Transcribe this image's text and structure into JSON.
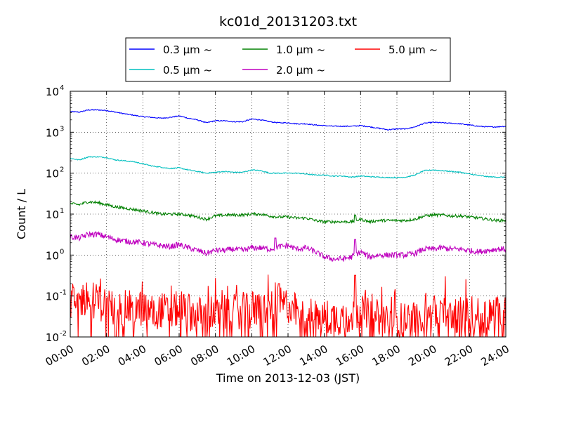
{
  "chart_data": {
    "type": "line",
    "title": "kc01d_20131203.txt",
    "xlabel": "Time on 2013-12-03 (JST)",
    "ylabel": "Count / L",
    "yscale": "log",
    "ylim": [
      0.01,
      10000
    ],
    "xlim": [
      "00:00",
      "24:00"
    ],
    "x_tick_labels": [
      "00:00",
      "02:00",
      "04:00",
      "06:00",
      "08:00",
      "10:00",
      "12:00",
      "14:00",
      "16:00",
      "18:00",
      "20:00",
      "22:00",
      "24:00"
    ],
    "y_tick_labels": [
      {
        "base": "10",
        "exp": "-2",
        "value": 0.01
      },
      {
        "base": "10",
        "exp": "-1",
        "value": 0.1
      },
      {
        "base": "10",
        "exp": "0",
        "value": 1
      },
      {
        "base": "10",
        "exp": "1",
        "value": 10
      },
      {
        "base": "10",
        "exp": "2",
        "value": 100
      },
      {
        "base": "10",
        "exp": "3",
        "value": 1000
      },
      {
        "base": "10",
        "exp": "4",
        "value": 10000
      }
    ],
    "grid": true,
    "legend_position": "top",
    "x_hours": [
      0,
      0.5,
      1,
      1.5,
      2,
      2.5,
      3,
      3.5,
      4,
      4.5,
      5,
      5.5,
      6,
      6.5,
      7,
      7.5,
      8,
      8.5,
      9,
      9.5,
      10,
      10.5,
      11,
      11.5,
      12,
      12.5,
      13,
      13.5,
      14,
      14.5,
      15,
      15.5,
      16,
      16.5,
      17,
      17.5,
      18,
      18.5,
      19,
      19.5,
      20,
      20.5,
      21,
      21.5,
      22,
      22.5,
      23,
      23.5,
      24
    ],
    "series": [
      {
        "name": "0.3 μm ~",
        "color": "#0000ff",
        "noise": "smooth",
        "values": [
          3200,
          3100,
          3500,
          3500,
          3400,
          3100,
          2800,
          2600,
          2400,
          2300,
          2200,
          2300,
          2500,
          2200,
          2000,
          1700,
          1900,
          1900,
          1800,
          1800,
          2100,
          2000,
          1800,
          1700,
          1700,
          1600,
          1600,
          1500,
          1450,
          1400,
          1400,
          1400,
          1450,
          1350,
          1250,
          1150,
          1200,
          1200,
          1350,
          1650,
          1750,
          1700,
          1650,
          1600,
          1500,
          1400,
          1350,
          1350,
          1400
        ]
      },
      {
        "name": "0.5 μm ~",
        "color": "#00bfbf",
        "noise": "smooth",
        "values": [
          230,
          210,
          250,
          250,
          240,
          210,
          200,
          190,
          170,
          150,
          140,
          130,
          135,
          120,
          110,
          100,
          105,
          110,
          105,
          105,
          120,
          115,
          100,
          100,
          100,
          100,
          95,
          90,
          90,
          85,
          85,
          80,
          85,
          82,
          80,
          78,
          78,
          80,
          90,
          115,
          120,
          115,
          110,
          105,
          95,
          88,
          82,
          80,
          80
        ]
      },
      {
        "name": "1.0 μm ~",
        "color": "#008000",
        "noise": "medium",
        "values": [
          18,
          17,
          20,
          19,
          17,
          15,
          14,
          13,
          12,
          11,
          10,
          10,
          10,
          9.5,
          8.5,
          7.5,
          9,
          9.5,
          9.5,
          9.5,
          10,
          10,
          9,
          8.5,
          8.5,
          8,
          8,
          7,
          6.5,
          6.5,
          6.5,
          6.5,
          7.5,
          6.5,
          7,
          7,
          7,
          7,
          7.5,
          9,
          9.5,
          9.5,
          9,
          9,
          8.5,
          8,
          7.5,
          7,
          7
        ]
      },
      {
        "name": "2.0 μm ~",
        "color": "#bf00bf",
        "noise": "rough",
        "values": [
          2.8,
          2.6,
          3.2,
          3.2,
          2.8,
          2.4,
          2.2,
          2.1,
          2,
          1.8,
          1.7,
          1.6,
          1.8,
          1.5,
          1.3,
          1.1,
          1.3,
          1.3,
          1.4,
          1.3,
          1.5,
          1.5,
          1.4,
          1.6,
          1.7,
          1.4,
          1.5,
          1.2,
          0.9,
          0.8,
          0.8,
          0.9,
          1.2,
          0.9,
          1,
          1,
          1,
          1,
          1.1,
          1.4,
          1.4,
          1.5,
          1.4,
          1.4,
          1.3,
          1.2,
          1.3,
          1.4,
          1.4
        ]
      },
      {
        "name": "5.0 μm ~",
        "color": "#ff0000",
        "noise": "spiky",
        "values": [
          0.07,
          0.08,
          0.09,
          0.07,
          0.06,
          0.05,
          0.05,
          0.05,
          0.05,
          0.04,
          0.045,
          0.04,
          0.05,
          0.04,
          0.035,
          0.035,
          0.04,
          0.04,
          0.04,
          0.045,
          0.04,
          0.05,
          0.05,
          0.06,
          0.06,
          0.04,
          0.035,
          0.03,
          0.03,
          0.03,
          0.03,
          0.03,
          0.05,
          0.03,
          0.03,
          0.03,
          0.025,
          0.025,
          0.03,
          0.04,
          0.04,
          0.04,
          0.035,
          0.035,
          0.035,
          0.035,
          0.035,
          0.04,
          0.035
        ]
      }
    ],
    "annotations": [
      {
        "series": "5.0 μm ~",
        "x_hour": 15.7,
        "value": 0.32
      },
      {
        "series": "5.0 μm ~",
        "x_hour": 11.5,
        "value": 0.2
      },
      {
        "series": "2.0 μm ~",
        "x_hour": 15.7,
        "value": 2.4
      },
      {
        "series": "2.0 μm ~",
        "x_hour": 11.3,
        "value": 2.6
      },
      {
        "series": "1.0 μm ~",
        "x_hour": 15.7,
        "value": 9.5
      }
    ]
  }
}
